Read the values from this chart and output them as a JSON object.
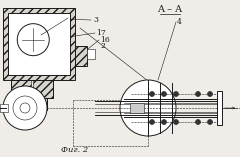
{
  "bg_color": "#f0ede8",
  "line_color": "#1a1a1a",
  "hatch_color": "#333333",
  "title": "A – A",
  "caption": "Фиг. 2",
  "fig_w": 2.4,
  "fig_h": 1.57,
  "dpi": 100
}
